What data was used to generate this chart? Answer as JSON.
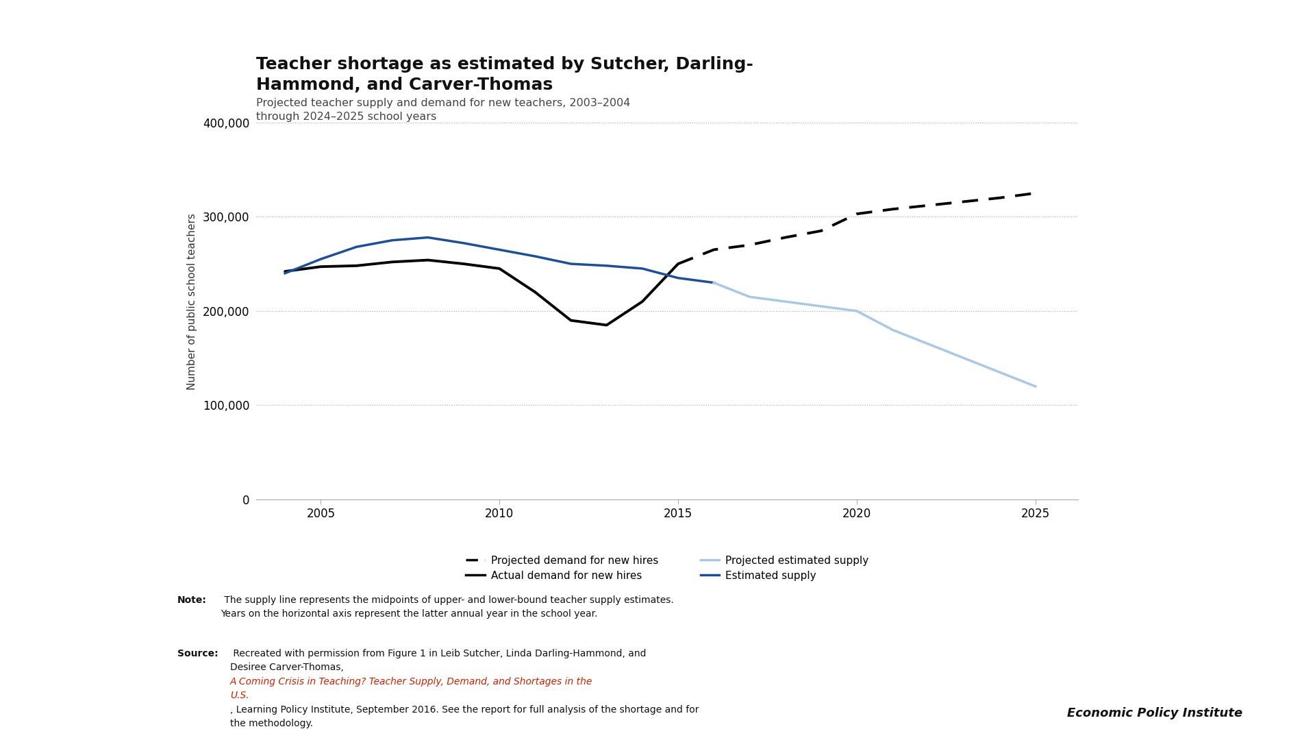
{
  "title_line1": "Teacher shortage as estimated by Sutcher, Darling-",
  "title_line2": "Hammond, and Carver-Thomas",
  "subtitle": "Projected teacher supply and demand for new teachers, 2003–2004\nthrough 2024–2025 school years",
  "ylabel": "Number of public school teachers",
  "bg_color": "#ffffff",
  "top_bar_color": "#888888",
  "chart_bg": "#ffffff",
  "actual_demand_x": [
    2004,
    2005,
    2006,
    2007,
    2008,
    2009,
    2010,
    2011,
    2012,
    2013,
    2014,
    2015
  ],
  "actual_demand_y": [
    242000,
    247000,
    248000,
    252000,
    254000,
    250000,
    245000,
    220000,
    190000,
    185000,
    210000,
    250000
  ],
  "projected_demand_x": [
    2015,
    2016,
    2017,
    2018,
    2019,
    2020,
    2021,
    2022,
    2023,
    2024,
    2025
  ],
  "projected_demand_y": [
    250000,
    265000,
    270000,
    278000,
    285000,
    303000,
    308000,
    312000,
    316000,
    320000,
    325000
  ],
  "estimated_supply_x": [
    2004,
    2005,
    2006,
    2007,
    2008,
    2009,
    2010,
    2011,
    2012,
    2013,
    2014,
    2015,
    2016
  ],
  "estimated_supply_y": [
    240000,
    255000,
    268000,
    275000,
    278000,
    272000,
    265000,
    258000,
    250000,
    248000,
    245000,
    235000,
    230000
  ],
  "projected_supply_x": [
    2016,
    2017,
    2018,
    2019,
    2020,
    2021,
    2022,
    2023,
    2024,
    2025
  ],
  "projected_supply_y": [
    230000,
    215000,
    210000,
    205000,
    200000,
    180000,
    165000,
    150000,
    135000,
    120000
  ],
  "actual_demand_color": "#000000",
  "projected_demand_color": "#000000",
  "estimated_supply_color": "#1a4fa0",
  "projected_supply_color": "#a8c8e8",
  "ylim": [
    0,
    420000
  ],
  "yticks": [
    0,
    100000,
    200000,
    300000,
    400000
  ],
  "xticks": [
    2005,
    2010,
    2015,
    2020,
    2025
  ],
  "legend_proj_demand": "Projected demand for new hires",
  "legend_actual_demand": "Actual demand for new hires",
  "legend_proj_supply": "Projected estimated supply",
  "legend_est_supply": "Estimated supply",
  "note_bold": "Note:",
  "note_text": " The supply line represents the midpoints of upper- and lower-bound teacher supply estimates.\nYears on the horizontal axis represent the latter annual year in the school year.",
  "source_bold": "Source:",
  "source_normal1": " Recreated with permission from Figure 1 in Leib Sutcher, Linda Darling-Hammond, and\nDesiree Carver-Thomas, ",
  "source_italic": "A Coming Crisis in Teaching? Teacher Supply, Demand, and Shortages in the\nU.S.",
  "source_italic_color": "#cc2200",
  "source_end": ", Learning Policy Institute, September 2016. See the report for full analysis of the shortage and for\nthe methodology.",
  "footer": "Economic Policy Institute"
}
